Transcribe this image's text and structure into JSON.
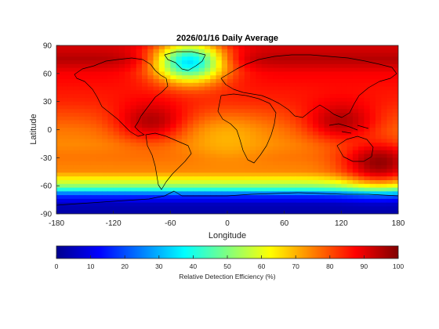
{
  "chart_data": {
    "type": "heatmap",
    "title": "2026/01/16 Daily Average",
    "xlabel": "Longitude",
    "ylabel": "Latitude",
    "xlim": [
      -180,
      180
    ],
    "ylim": [
      -90,
      90
    ],
    "x_ticks": [
      -180,
      -120,
      -60,
      0,
      60,
      120,
      180
    ],
    "y_ticks": [
      90,
      60,
      30,
      0,
      -30,
      -60,
      -90
    ],
    "colormap": "jet",
    "colorbar": {
      "label": "Relative Detection Efficiency (%)",
      "range": [
        0,
        100
      ],
      "ticks": [
        0,
        10,
        20,
        30,
        40,
        50,
        60,
        70,
        80,
        90,
        100
      ],
      "orientation": "horizontal",
      "placement": "bottom"
    },
    "latitude_bands": [
      {
        "lat": 85,
        "value": 92
      },
      {
        "lat": 75,
        "value": 95
      },
      {
        "lat": 60,
        "value": 88
      },
      {
        "lat": 45,
        "value": 86
      },
      {
        "lat": 30,
        "value": 84
      },
      {
        "lat": 15,
        "value": 80
      },
      {
        "lat": 0,
        "value": 76
      },
      {
        "lat": -15,
        "value": 74
      },
      {
        "lat": -30,
        "value": 76
      },
      {
        "lat": -45,
        "value": 74
      },
      {
        "lat": -55,
        "value": 60
      },
      {
        "lat": -62,
        "value": 48
      },
      {
        "lat": -70,
        "value": 18
      },
      {
        "lat": -80,
        "value": 5
      },
      {
        "lat": -88,
        "value": 3
      }
    ],
    "features": [
      {
        "name": "Greenland low",
        "lon": -40,
        "lat": 72,
        "value": 35
      },
      {
        "name": "Amazon / central America high",
        "lon": -80,
        "lat": 10,
        "value": 95
      },
      {
        "name": "Southeast Asia / Indonesia high",
        "lon": 120,
        "lat": 10,
        "value": 95
      },
      {
        "name": "SW Pacific / Australia high",
        "lon": 160,
        "lat": -35,
        "value": 98
      },
      {
        "name": "South Atlantic / Africa moderate",
        "lon": 0,
        "lat": -10,
        "value": 70
      }
    ],
    "grid": false,
    "overlay": "coastlines"
  }
}
